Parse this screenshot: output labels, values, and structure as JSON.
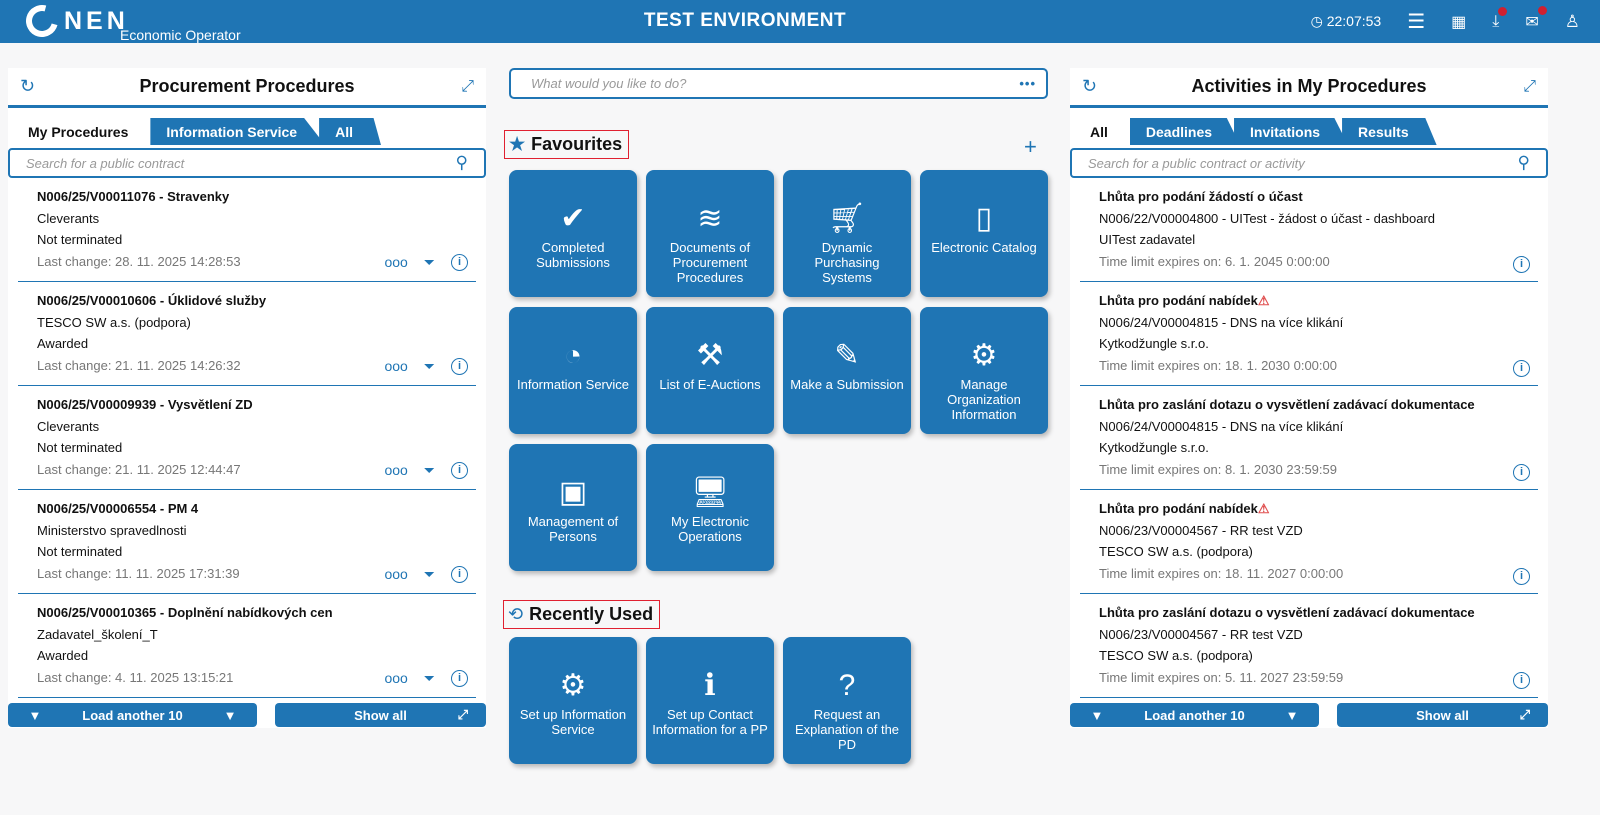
{
  "header": {
    "logo": "NEN",
    "subtitle": "Economic Operator",
    "environment": "TEST ENVIRONMENT",
    "time": "22:07:53",
    "icons": [
      "clock-icon",
      "menu-icon",
      "calendar-icon",
      "download-icon",
      "mail-icon",
      "user-icon"
    ]
  },
  "left": {
    "title": "Procurement Procedures",
    "tabs": [
      "My Procedures",
      "Information Service",
      "All"
    ],
    "search_placeholder": "Search for a public contract",
    "items": [
      {
        "title": "N006/25/V00011076 - Stravenky",
        "org": "Cleverants",
        "status": "Not terminated",
        "date": "Last change: 28. 11. 2025 14:28:53"
      },
      {
        "title": "N006/25/V00010606 - Úklidové služby",
        "org": "TESCO SW a.s. (podpora)",
        "status": "Awarded",
        "date": "Last change: 21. 11. 2025 14:26:32"
      },
      {
        "title": "N006/25/V00009939 - Vysvětlení ZD",
        "org": "Cleverants",
        "status": "Not terminated",
        "date": "Last change: 21. 11. 2025 12:44:47"
      },
      {
        "title": "N006/25/V00006554 - PM 4",
        "org": "Ministerstvo spravedlnosti",
        "status": "Not terminated",
        "date": "Last change: 11. 11. 2025 17:31:39"
      },
      {
        "title": "N006/25/V00010365 - Doplnění nabídkových cen",
        "org": "Zadavatel_školení_T",
        "status": "Awarded",
        "date": "Last change: 4. 11. 2025 13:15:21"
      }
    ],
    "load_more": "Load another 10",
    "show_all": "Show all"
  },
  "center": {
    "search_placeholder": "What would you like to do?",
    "favourites_title": "Favourites",
    "recent_title": "Recently Used",
    "favourites": [
      {
        "label": "Completed Submissions",
        "icon": "check-icon"
      },
      {
        "label": "Documents of Procurement Procedures",
        "icon": "layers-icon"
      },
      {
        "label": "Dynamic Purchasing Systems",
        "icon": "cart-icon"
      },
      {
        "label": "Electronic Catalog",
        "icon": "catalog-icon"
      },
      {
        "label": "Information Service",
        "icon": "rss-icon"
      },
      {
        "label": "List of E-Auctions",
        "icon": "gavel-icon"
      },
      {
        "label": "Make a Submission",
        "icon": "edit-icon"
      },
      {
        "label": "Manage Organization Information",
        "icon": "org-gear-icon"
      },
      {
        "label": "Management of Persons",
        "icon": "id-card-icon"
      },
      {
        "label": "My Electronic Operations",
        "icon": "monitor-user-icon"
      }
    ],
    "recent": [
      {
        "label": "Set up Information Service",
        "icon": "rss-gear-icon"
      },
      {
        "label": "Set up Contact Information for a PP",
        "icon": "contact-book-icon"
      },
      {
        "label": "Request an Explanation of the PD",
        "icon": "question-icon"
      }
    ]
  },
  "right": {
    "title": "Activities in My Procedures",
    "tabs": [
      "All",
      "Deadlines",
      "Invitations",
      "Results"
    ],
    "search_placeholder": "Search for a public contract or activity",
    "items": [
      {
        "title": "Lhůta pro podání žádostí o účast",
        "warning": false,
        "procedure": "N006/22/V00004800 - UITest - žádost o účast - dashboard",
        "org": "UITest zadavatel",
        "date": "Time limit expires on: 6. 1. 2045 0:00:00"
      },
      {
        "title": "Lhůta pro podání nabídek",
        "warning": true,
        "procedure": "N006/24/V00004815 - DNS na více klikání",
        "org": "Kytkodžungle s.r.o.",
        "date": "Time limit expires on: 18. 1. 2030 0:00:00"
      },
      {
        "title": "Lhůta pro zaslání dotazu o vysvětlení zadávací dokumentace",
        "warning": false,
        "procedure": "N006/24/V00004815 - DNS na více klikání",
        "org": "Kytkodžungle s.r.o.",
        "date": "Time limit expires on: 8. 1. 2030 23:59:59"
      },
      {
        "title": "Lhůta pro podání nabídek",
        "warning": true,
        "procedure": "N006/23/V00004567 - RR test VZD",
        "org": "TESCO SW a.s. (podpora)",
        "date": "Time limit expires on: 18. 11. 2027 0:00:00"
      },
      {
        "title": "Lhůta pro zaslání dotazu o vysvětlení zadávací dokumentace",
        "warning": false,
        "procedure": "N006/23/V00004567 - RR test VZD",
        "org": "TESCO SW a.s. (podpora)",
        "date": "Time limit expires on: 5. 11. 2027 23:59:59"
      }
    ],
    "load_more": "Load another 10",
    "show_all": "Show all"
  },
  "colors": {
    "primary": "#1f75b4",
    "badge": "#d02030",
    "warning": "#e05050"
  }
}
